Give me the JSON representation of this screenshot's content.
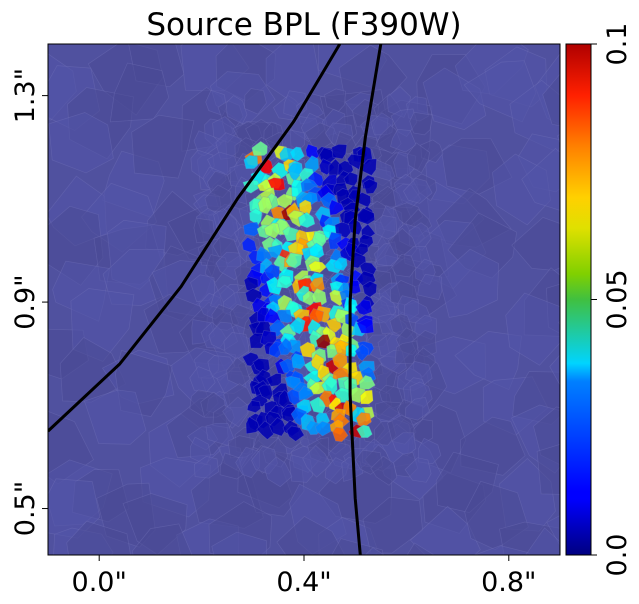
{
  "chart_data": {
    "type": "heatmap",
    "title": "Source BPL (F390W)",
    "x_ticks": [
      {
        "value": 0.0,
        "label": "0.0\""
      },
      {
        "value": 0.4,
        "label": "0.4\""
      },
      {
        "value": 0.8,
        "label": "0.8\""
      }
    ],
    "y_ticks": [
      {
        "value": 1.3,
        "label": "1.3\""
      },
      {
        "value": 0.9,
        "label": "0.9\""
      },
      {
        "value": 0.5,
        "label": "0.5\""
      }
    ],
    "xlim": [
      -0.1,
      0.9
    ],
    "ylim": [
      0.41,
      1.4
    ],
    "colorbar": {
      "range": [
        0.0,
        0.1
      ],
      "ticks": [
        {
          "value": 0.0,
          "label": "0.0"
        },
        {
          "value": 0.05,
          "label": "0.05"
        },
        {
          "value": 0.1,
          "label": "0.1"
        }
      ],
      "colormap": "jet"
    },
    "background_color": "#50519f",
    "caustic_curves": [
      {
        "points": [
          [
            -0.1,
            0.65
          ],
          [
            0.04,
            0.78
          ],
          [
            0.16,
            0.93
          ],
          [
            0.27,
            1.1
          ],
          [
            0.38,
            1.25
          ],
          [
            0.47,
            1.4
          ]
        ]
      },
      {
        "points": [
          [
            0.51,
            0.41
          ],
          [
            0.5,
            0.52
          ],
          [
            0.49,
            0.72
          ],
          [
            0.49,
            0.9
          ],
          [
            0.5,
            1.06
          ],
          [
            0.52,
            1.22
          ],
          [
            0.55,
            1.4
          ]
        ]
      }
    ],
    "grid": false,
    "legend": "none"
  }
}
